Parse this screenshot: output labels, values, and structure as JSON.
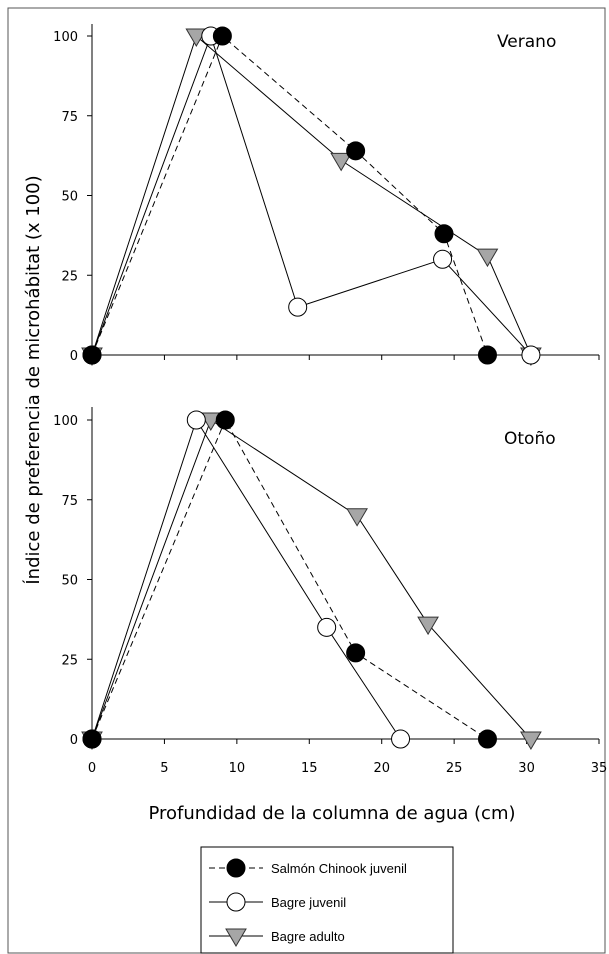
{
  "chart_data": {
    "type": "line",
    "ylabel": "Índice de preferencia de microhábitat (x 100)",
    "xlabel": "Profundidad de la columna de agua (cm)",
    "xlim": [
      0,
      35
    ],
    "xticks": [
      "0",
      "5",
      "10",
      "15",
      "20",
      "25",
      "30",
      "35"
    ],
    "ylim": [
      0,
      100
    ],
    "yticks": [
      "0",
      "25",
      "50",
      "75",
      "100"
    ],
    "grid": false,
    "legend_position": "bottom",
    "legend": [
      {
        "key": "chinook",
        "label": "Salmón Chinook juvenil",
        "marker": "filled-circle",
        "line": "dashed"
      },
      {
        "key": "bagre_juv",
        "label": "Bagre juvenil",
        "marker": "open-circle",
        "line": "solid"
      },
      {
        "key": "bagre_adulto",
        "label": "Bagre adulto",
        "marker": "gray-triangle",
        "line": "solid"
      }
    ],
    "panels": [
      {
        "label": "Verano",
        "series": [
          {
            "key": "chinook",
            "points": [
              [
                0,
                0
              ],
              [
                9,
                100
              ],
              [
                18.2,
                64
              ],
              [
                24.3,
                38
              ],
              [
                27.3,
                0
              ]
            ]
          },
          {
            "key": "bagre_juv",
            "points": [
              [
                0,
                0
              ],
              [
                8.2,
                100
              ],
              [
                14.2,
                15
              ],
              [
                24.2,
                30
              ],
              [
                30.3,
                0
              ]
            ]
          },
          {
            "key": "bagre_adulto",
            "points": [
              [
                0,
                0
              ],
              [
                7.2,
                100
              ],
              [
                17.2,
                61
              ],
              [
                27.3,
                31
              ],
              [
                30.3,
                0
              ]
            ]
          }
        ]
      },
      {
        "label": "Otoño",
        "series": [
          {
            "key": "chinook",
            "points": [
              [
                0,
                0
              ],
              [
                9.2,
                100
              ],
              [
                18.2,
                27
              ],
              [
                27.3,
                0
              ]
            ]
          },
          {
            "key": "bagre_juv",
            "points": [
              [
                0,
                0
              ],
              [
                7.2,
                100
              ],
              [
                16.2,
                35
              ],
              [
                21.3,
                0
              ]
            ]
          },
          {
            "key": "bagre_adulto",
            "points": [
              [
                0,
                0
              ],
              [
                8.2,
                100
              ],
              [
                18.3,
                70
              ],
              [
                23.2,
                36
              ],
              [
                30.3,
                0
              ]
            ]
          }
        ]
      }
    ]
  }
}
